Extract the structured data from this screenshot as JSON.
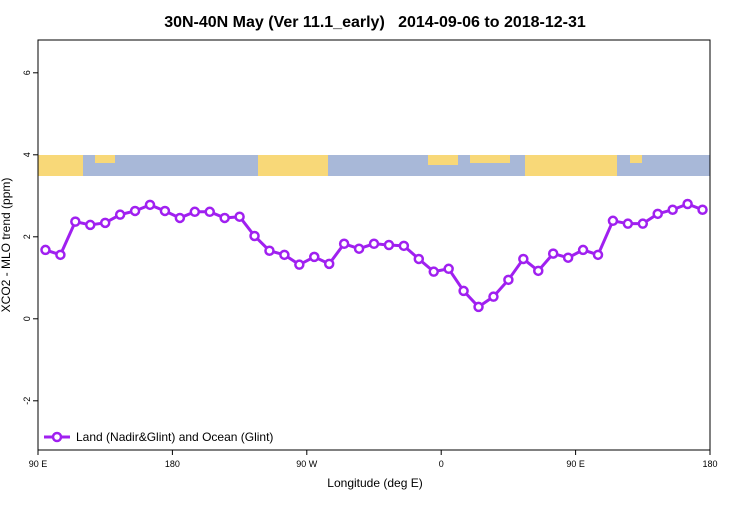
{
  "chart_data": {
    "type": "line",
    "title": "30N-40N May (Ver 11.1_early)   2014-09-06 to 2018-12-31",
    "x_label": "Longitude (deg E)",
    "y_label": "XCO2 - MLO trend (ppm)",
    "x": [
      95,
      105,
      115,
      125,
      135,
      145,
      155,
      165,
      175,
      185,
      195,
      205,
      215,
      225,
      235,
      245,
      255,
      265,
      275,
      285,
      295,
      305,
      315,
      325,
      335,
      345,
      355,
      365,
      375,
      385,
      395,
      405,
      415,
      425,
      435,
      445,
      455,
      465,
      475,
      485,
      495,
      505,
      515,
      525,
      535
    ],
    "series": [
      {
        "name": "Land (Nadir&Glint) and Ocean (Glint)",
        "color": "#a020f0",
        "values": [
          1.68,
          1.56,
          2.37,
          2.29,
          2.34,
          2.54,
          2.63,
          2.78,
          2.63,
          2.46,
          2.61,
          2.61,
          2.46,
          2.49,
          2.02,
          1.66,
          1.56,
          1.32,
          1.51,
          1.34,
          1.83,
          1.71,
          1.83,
          1.8,
          1.78,
          1.46,
          1.15,
          1.22,
          0.68,
          0.29,
          0.54,
          0.95,
          1.46,
          1.17,
          1.59,
          1.49,
          1.68,
          1.56,
          2.39,
          2.32,
          2.32,
          2.56,
          2.66,
          2.8,
          2.66
        ]
      }
    ],
    "xlim": [
      90,
      540
    ],
    "xticks": [
      {
        "value": 90,
        "label": "90 E"
      },
      180,
      {
        "value": 270,
        "label": "90 W"
      },
      {
        "value": 360,
        "label": "0"
      },
      {
        "value": 450,
        "label": "90 E"
      },
      {
        "value": 540,
        "label": "180"
      }
    ],
    "ylim": [
      -3.2,
      6.8
    ],
    "yticks": [
      -2,
      0,
      2,
      4,
      6
    ],
    "legend": "bottom-left"
  }
}
